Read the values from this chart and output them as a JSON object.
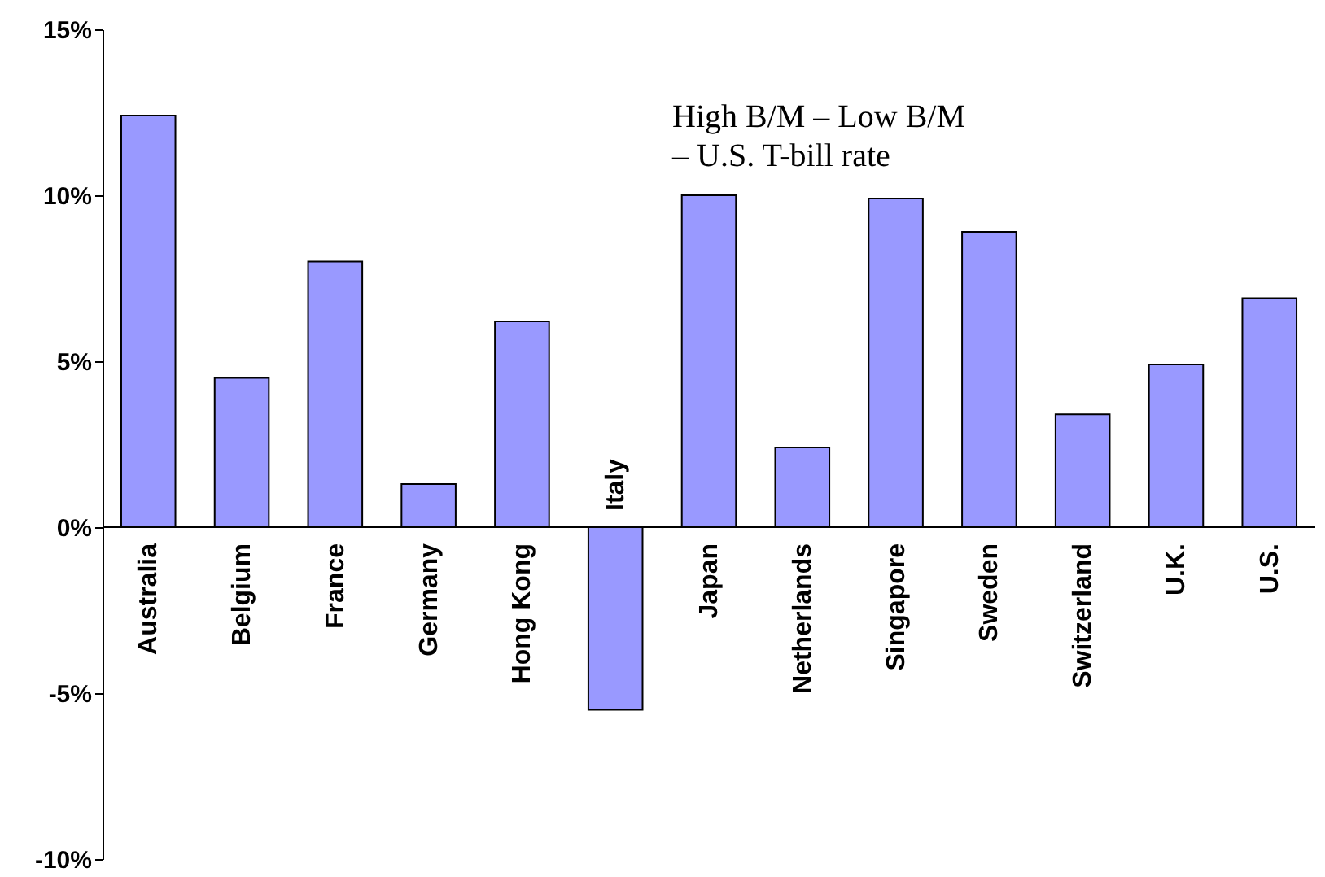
{
  "chart_data": {
    "type": "bar",
    "categories": [
      "Australia",
      "Belgium",
      "France",
      "Germany",
      "Hong Kong",
      "Italy",
      "Japan",
      "Netherlands",
      "Singapore",
      "Sweden",
      "Switzerland",
      "U.K.",
      "U.S."
    ],
    "values": [
      12.4,
      4.5,
      8.0,
      1.3,
      6.2,
      -5.5,
      10.0,
      2.4,
      9.9,
      8.9,
      3.4,
      4.9,
      6.9
    ],
    "color": "#9999ff",
    "ylim": [
      -10,
      15
    ],
    "yticks": [
      {
        "value": -10,
        "label": "-10%"
      },
      {
        "value": -5,
        "label": "-5%"
      },
      {
        "value": 0,
        "label": "0%"
      },
      {
        "value": 5,
        "label": "5%"
      },
      {
        "value": 10,
        "label": "10%"
      },
      {
        "value": 15,
        "label": "15%"
      }
    ],
    "annotations": [
      "High B/M – Low B/M\n– U.S. T-bill rate"
    ],
    "grid": false
  }
}
